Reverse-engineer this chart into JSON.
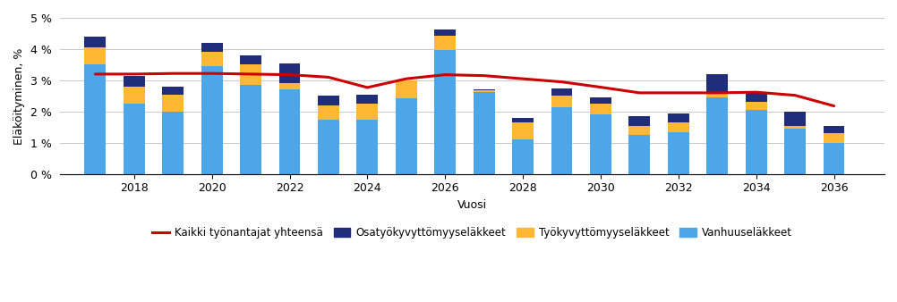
{
  "years": [
    2017,
    2018,
    2019,
    2020,
    2021,
    2022,
    2023,
    2024,
    2025,
    2026,
    2027,
    2028,
    2029,
    2030,
    2031,
    2032,
    2033,
    2034,
    2035,
    2036
  ],
  "vanhuuselakkeet": [
    3.5,
    2.25,
    2.0,
    3.45,
    2.85,
    2.7,
    1.75,
    1.75,
    2.42,
    3.98,
    2.62,
    1.1,
    2.15,
    1.9,
    1.25,
    1.35,
    2.45,
    2.05,
    1.45,
    1.0
  ],
  "tyokyvyttomyyselakkeet": [
    0.55,
    0.55,
    0.55,
    0.45,
    0.65,
    0.2,
    0.45,
    0.5,
    0.58,
    0.45,
    0.05,
    0.55,
    0.35,
    0.35,
    0.3,
    0.3,
    0.15,
    0.25,
    0.1,
    0.3
  ],
  "osatyokyvyttomyyselakkeet": [
    0.35,
    0.35,
    0.25,
    0.3,
    0.3,
    0.65,
    0.3,
    0.28,
    0.0,
    0.2,
    0.05,
    0.15,
    0.25,
    0.2,
    0.3,
    0.3,
    0.6,
    0.3,
    0.45,
    0.25
  ],
  "red_line": [
    3.2,
    3.2,
    3.22,
    3.22,
    3.2,
    3.18,
    3.1,
    2.77,
    3.05,
    3.18,
    3.15,
    3.05,
    2.95,
    2.78,
    2.6,
    2.6,
    2.6,
    2.62,
    2.52,
    2.18
  ],
  "color_vanhuus": "#4DA6E8",
  "color_tyokyvy": "#FFB833",
  "color_osatyokyvy": "#1F2D7A",
  "color_redline": "#CC0000",
  "ylabel": "Eläköityminen, %",
  "xlabel": "Vuosi",
  "ylim": [
    0,
    5.0
  ],
  "yticks": [
    0,
    1,
    2,
    3,
    4,
    5
  ],
  "ytick_labels": [
    "0 %",
    "1 %",
    "2 %",
    "3 %",
    "4 %",
    "5 %"
  ],
  "xticks": [
    2018,
    2020,
    2022,
    2024,
    2026,
    2028,
    2030,
    2032,
    2034,
    2036
  ],
  "legend_labels": [
    "Kaikki työnantajat yhteensä",
    "Osatyökyvyttömyyseläkkeet",
    "Työkyvyttömyyseläkkeet",
    "Vanhuuseläkkeet"
  ],
  "bg_color": "#FFFFFF",
  "grid_color": "#C8C8C8",
  "bar_width": 0.55,
  "xlim_left": 2016.1,
  "xlim_right": 2037.3
}
